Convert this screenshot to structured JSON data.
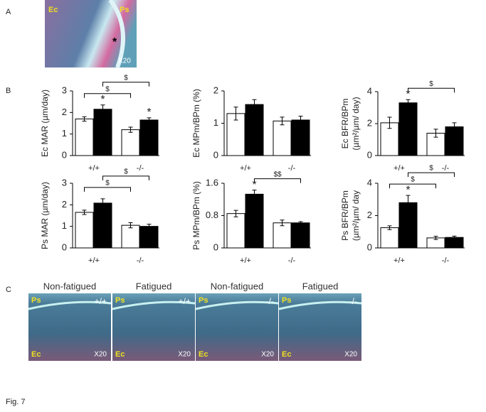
{
  "panel_a": {
    "label": "A",
    "labels": [
      "Ec",
      "Ps",
      "X20",
      "*"
    ]
  },
  "panel_b": {
    "label": "B"
  },
  "panel_c": {
    "label": "C",
    "images": [
      {
        "title": "Non-fatigued",
        "genotype": "+/+",
        "labels": [
          "Ps",
          "Ec",
          "X20"
        ]
      },
      {
        "title": "Fatigued",
        "genotype": "+/+",
        "labels": [
          "Ps",
          "Ec",
          "X20"
        ]
      },
      {
        "title": "Non-fatigued",
        "genotype": "-/-",
        "labels": [
          "Ps",
          "Ec",
          "X20"
        ]
      },
      {
        "title": "Fatigued",
        "genotype": "-/-",
        "labels": [
          "Ps",
          "Ec",
          "X20"
        ]
      }
    ]
  },
  "caption": "Fig. 7",
  "chart_data": [
    {
      "type": "bar",
      "ylabel": "Ec MAR (µm/day)",
      "categories": [
        "+/+",
        "-/-"
      ],
      "ylim": [
        0,
        3
      ],
      "yticks": [
        0,
        1,
        2,
        3
      ],
      "series": [
        {
          "color": "#ffffff",
          "values": [
            1.7,
            1.2
          ],
          "errors": [
            0.1,
            0.12
          ]
        },
        {
          "color": "#000000",
          "values": [
            2.15,
            1.65
          ],
          "errors": [
            0.2,
            0.1
          ],
          "markers": [
            "*",
            "*"
          ]
        }
      ],
      "brackets": [
        {
          "label": "$",
          "from": [
            0,
            0
          ],
          "to": [
            1,
            0
          ]
        },
        {
          "label": "$",
          "from": [
            0,
            1
          ],
          "to": [
            1,
            1
          ]
        }
      ]
    },
    {
      "type": "bar",
      "ylabel": "Ec MPm/BPm (%)",
      "categories": [
        "+/+",
        "-/-"
      ],
      "ylim": [
        0,
        2
      ],
      "yticks": [
        0,
        1,
        2
      ],
      "series": [
        {
          "color": "#ffffff",
          "values": [
            1.3,
            1.07
          ],
          "errors": [
            0.2,
            0.12
          ]
        },
        {
          "color": "#000000",
          "values": [
            1.58,
            1.1
          ],
          "errors": [
            0.15,
            0.12
          ]
        }
      ]
    },
    {
      "type": "bar",
      "ylabel": [
        "Ec BFR/BPm",
        "(µm²/µm/ day)"
      ],
      "categories": [
        "+/+",
        "-/-"
      ],
      "ylim": [
        0,
        4
      ],
      "yticks": [
        0,
        2,
        4
      ],
      "series": [
        {
          "color": "#ffffff",
          "values": [
            2.05,
            1.4
          ],
          "errors": [
            0.35,
            0.25
          ]
        },
        {
          "color": "#000000",
          "values": [
            3.3,
            1.8
          ],
          "errors": [
            0.2,
            0.25
          ],
          "markers": [
            "*",
            null
          ]
        }
      ],
      "brackets": [
        {
          "label": "$",
          "from": [
            0,
            1
          ],
          "to": [
            1,
            1
          ]
        }
      ]
    },
    {
      "type": "bar",
      "ylabel": "Ps MAR (µm/day)",
      "categories": [
        "+/+",
        "-/-"
      ],
      "ylim": [
        0,
        3
      ],
      "yticks": [
        0,
        1,
        2,
        3
      ],
      "series": [
        {
          "color": "#ffffff",
          "values": [
            1.65,
            1.05
          ],
          "errors": [
            0.1,
            0.12
          ]
        },
        {
          "color": "#000000",
          "values": [
            2.08,
            1.0
          ],
          "errors": [
            0.2,
            0.1
          ]
        }
      ],
      "brackets": [
        {
          "label": "$",
          "from": [
            0,
            0
          ],
          "to": [
            1,
            0
          ]
        },
        {
          "label": "$",
          "from": [
            0,
            1
          ],
          "to": [
            1,
            1
          ]
        }
      ]
    },
    {
      "type": "bar",
      "ylabel": "Ps MPm/BPm (%)",
      "categories": [
        "+/+",
        "-/-"
      ],
      "ylim": [
        0,
        1.6
      ],
      "yticks": [
        0,
        0.8,
        1.6
      ],
      "series": [
        {
          "color": "#ffffff",
          "values": [
            0.85,
            0.62
          ],
          "errors": [
            0.08,
            0.07
          ]
        },
        {
          "color": "#000000",
          "values": [
            1.33,
            0.62
          ],
          "errors": [
            0.1,
            0.03
          ],
          "markers": [
            "*",
            null
          ]
        }
      ],
      "brackets": [
        {
          "label": "$$",
          "from": [
            0,
            1
          ],
          "to": [
            1,
            1
          ]
        }
      ]
    },
    {
      "type": "bar",
      "ylabel": [
        "Ps BFR/BPm",
        "(µm²/µm/ day"
      ],
      "categories": [
        "+/+",
        "-/-"
      ],
      "ylim": [
        0,
        4
      ],
      "yticks": [
        0,
        2,
        4
      ],
      "series": [
        {
          "color": "#ffffff",
          "values": [
            1.25,
            0.62
          ],
          "errors": [
            0.12,
            0.1
          ]
        },
        {
          "color": "#000000",
          "values": [
            2.8,
            0.65
          ],
          "errors": [
            0.45,
            0.08
          ],
          "markers": [
            "*",
            null
          ]
        }
      ],
      "brackets": [
        {
          "label": "$",
          "from": [
            0,
            0
          ],
          "to": [
            1,
            0
          ]
        },
        {
          "label": "$",
          "from": [
            0,
            1
          ],
          "to": [
            1,
            1
          ]
        }
      ]
    }
  ]
}
